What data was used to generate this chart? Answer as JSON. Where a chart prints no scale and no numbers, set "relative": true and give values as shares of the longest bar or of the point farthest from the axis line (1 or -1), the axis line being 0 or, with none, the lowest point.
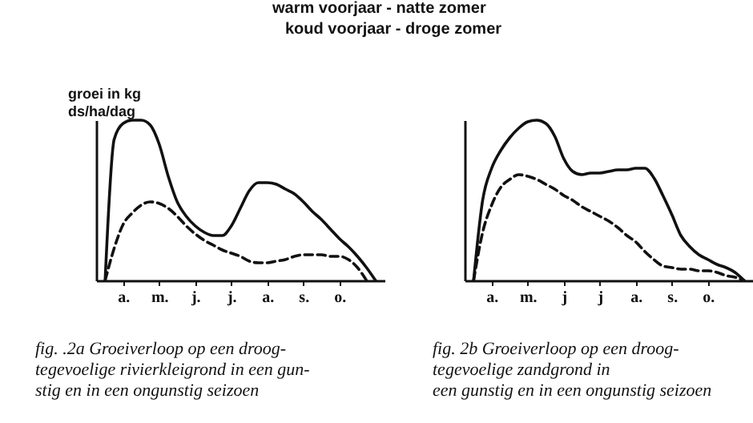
{
  "chart_data": [
    {
      "type": "line",
      "title": "fig.    .2a Groeiverloop op een droog-\ntegevoelige rivierkleigrond in een gun-\nstig en in een ongunstig seizoen",
      "ylabel": "groei in kg\nds/ha/dag",
      "annotations": [
        "warm voorjaar - natte zomer",
        "koud voorjaar - droge zomer"
      ],
      "relative": true,
      "grid": false,
      "marker": "none",
      "categories": [
        null,
        null,
        "a.",
        null,
        null,
        null,
        "m.",
        null,
        null,
        null,
        "j.",
        null,
        null,
        null,
        "j.",
        null,
        null,
        null,
        "a.",
        null,
        null,
        null,
        "s.",
        null,
        null,
        null,
        "o.",
        null,
        null,
        null,
        null
      ],
      "series": [
        {
          "color": "#111111",
          "line_style": "solid",
          "values": [
            0,
            0.88,
            0.98,
            1,
            1,
            0.97,
            0.85,
            0.65,
            0.49,
            0.4,
            0.34,
            0.3,
            0.28,
            0.28,
            0.34,
            0.45,
            0.56,
            0.61,
            0.61,
            0.6,
            0.57,
            0.54,
            0.49,
            0.43,
            0.38,
            0.32,
            0.26,
            0.21,
            0.15,
            0.08,
            0
          ]
        },
        {
          "color": "#111111",
          "line_style": "dashed",
          "values": [
            0,
            0.2,
            0.35,
            0.42,
            0.47,
            0.49,
            0.48,
            0.45,
            0.4,
            0.34,
            0.29,
            0.25,
            0.22,
            0.19,
            0.17,
            0.15,
            0.12,
            0.11,
            0.11,
            0.12,
            0.13,
            0.15,
            0.16,
            0.16,
            0.16,
            0.15,
            0.15,
            0.13,
            0.08,
            0,
            null
          ]
        }
      ]
    },
    {
      "type": "line",
      "title": "fig.       2b Groeiverloop op een droog-\ntegevoelige  zandgrond  in\neen gunstig en in een ongunstig seizoen",
      "relative": true,
      "grid": false,
      "marker": "none",
      "categories": [
        null,
        null,
        "a.",
        null,
        null,
        null,
        "m.",
        null,
        null,
        null,
        "j",
        null,
        null,
        null,
        "j",
        null,
        null,
        null,
        "a.",
        null,
        null,
        null,
        "s.",
        null,
        null,
        null,
        "o.",
        null,
        null,
        null,
        null
      ],
      "series": [
        {
          "color": "#111111",
          "line_style": "solid",
          "values": [
            0,
            0.5,
            0.7,
            0.81,
            0.89,
            0.95,
            0.99,
            1,
            0.98,
            0.9,
            0.76,
            0.68,
            0.66,
            0.67,
            0.67,
            0.68,
            0.69,
            0.69,
            0.7,
            0.7,
            0.64,
            0.53,
            0.41,
            0.28,
            0.21,
            0.16,
            0.13,
            0.1,
            0.08,
            0.05,
            0
          ]
        },
        {
          "color": "#111111",
          "line_style": "dashed",
          "values": [
            0,
            0.3,
            0.47,
            0.58,
            0.63,
            0.66,
            0.65,
            0.63,
            0.6,
            0.57,
            0.53,
            0.5,
            0.46,
            0.43,
            0.4,
            0.37,
            0.33,
            0.28,
            0.24,
            0.18,
            0.13,
            0.09,
            0.08,
            0.07,
            0.07,
            0.06,
            0.06,
            0.05,
            0.03,
            0.02,
            0
          ]
        }
      ]
    }
  ]
}
